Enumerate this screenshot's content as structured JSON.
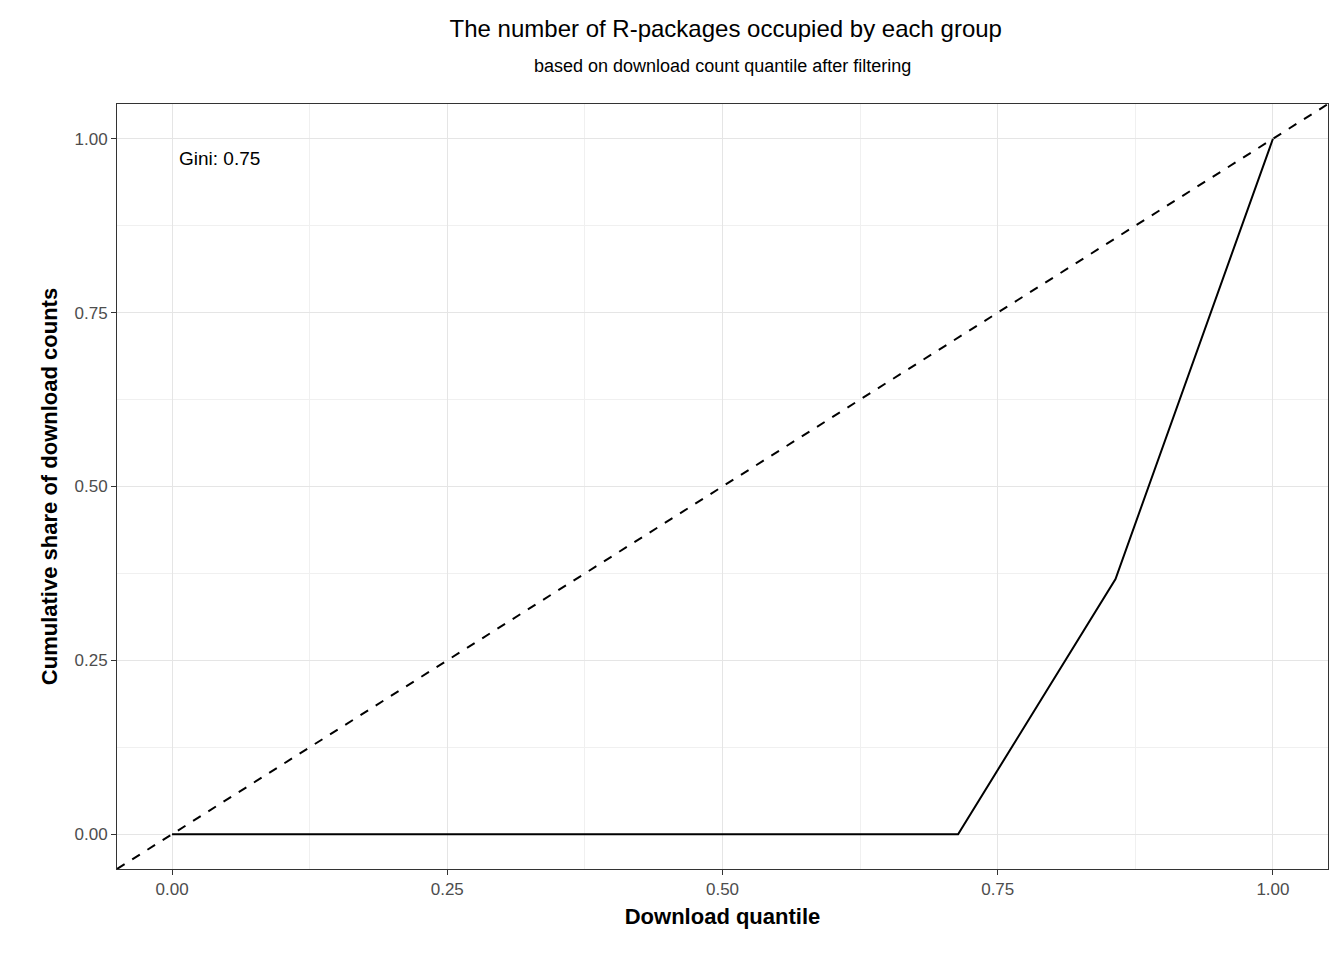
{
  "chart_data": {
    "type": "line",
    "title": "The number of R-packages occupied by each group",
    "subtitle": "based on download count quantile after filtering",
    "x_label": "Download quantile",
    "y_label": "Cumulative share of download counts",
    "annotation": "Gini: 0.75",
    "series": [
      {
        "x": [
          0,
          0.143,
          0.286,
          0.429,
          0.571,
          0.714,
          0.857,
          1
        ],
        "values": [
          0,
          0,
          0,
          0,
          0,
          0,
          0.367,
          1
        ],
        "color": "#000000",
        "line_style": "solid"
      },
      {
        "x": [
          -0.05,
          1.05
        ],
        "values": [
          -0.05,
          1.05
        ],
        "color": "#000000",
        "line_style": "dashed"
      }
    ],
    "xlim": [
      -0.05,
      1.05
    ],
    "ylim": [
      -0.05,
      1.05
    ],
    "xticks": [
      {
        "value": 0,
        "label": "0.00"
      },
      {
        "value": 0.25,
        "label": "0.25"
      },
      {
        "value": 0.5,
        "label": "0.50"
      },
      {
        "value": 0.75,
        "label": "0.75"
      },
      {
        "value": 1,
        "label": "1.00"
      }
    ],
    "yticks": [
      {
        "value": 0,
        "label": "0.00"
      },
      {
        "value": 0.25,
        "label": "0.25"
      },
      {
        "value": 0.5,
        "label": "0.50"
      },
      {
        "value": 0.75,
        "label": "0.75"
      },
      {
        "value": 1,
        "label": "1.00"
      }
    ],
    "grid": true
  }
}
